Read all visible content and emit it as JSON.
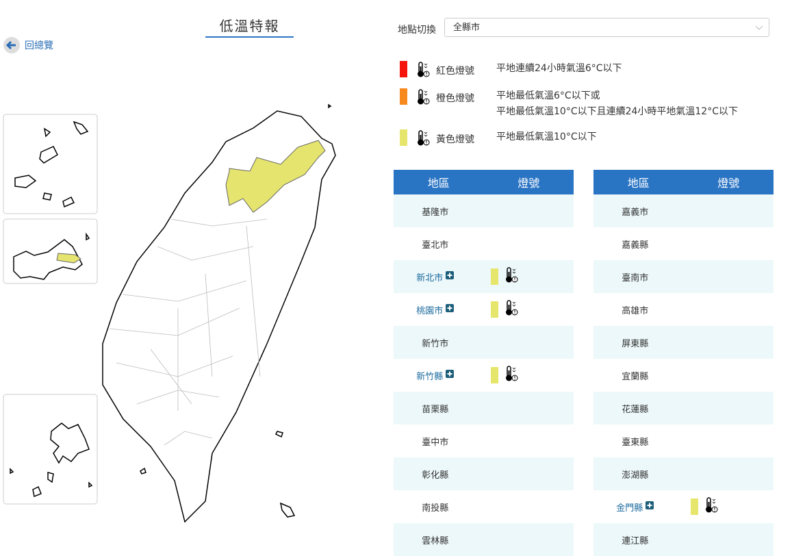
{
  "header": {
    "title": "低溫特報",
    "back": "回總覽"
  },
  "location": {
    "label": "地點切換",
    "selected": "全縣市"
  },
  "legend": [
    {
      "name": "紅色燈號",
      "color": "#f5150d",
      "description": [
        "平地連續24小時氣溫6°C以下"
      ]
    },
    {
      "name": "橙色燈號",
      "color": "#f7891f",
      "description": [
        "平地最低氣溫6°C以下或",
        "平地最低氣溫10°C以下且連續24小時平地氣溫12°C以下"
      ]
    },
    {
      "name": "黃色燈號",
      "color": "#e6e66c",
      "description": [
        "平地最低氣溫10°C以下"
      ]
    }
  ],
  "tables": [
    {
      "headers": [
        "地區",
        "燈號"
      ],
      "rows": [
        {
          "region": "基隆市"
        },
        {
          "region": "臺北市"
        },
        {
          "region": "新北市",
          "color": "#e6e66c"
        },
        {
          "region": "桃園市",
          "color": "#e6e66c"
        },
        {
          "region": "新竹市"
        },
        {
          "region": "新竹縣",
          "color": "#e6e66c"
        },
        {
          "region": "苗栗縣"
        },
        {
          "region": "臺中市"
        },
        {
          "region": "彰化縣"
        },
        {
          "region": "南投縣"
        },
        {
          "region": "雲林縣"
        }
      ]
    },
    {
      "headers": [
        "地區",
        "燈號"
      ],
      "rows": [
        {
          "region": "嘉義市"
        },
        {
          "region": "嘉義縣"
        },
        {
          "region": "臺南市"
        },
        {
          "region": "高雄市"
        },
        {
          "region": "屏東縣"
        },
        {
          "region": "宜蘭縣"
        },
        {
          "region": "花蓮縣"
        },
        {
          "region": "臺東縣"
        },
        {
          "region": "澎湖縣"
        },
        {
          "region": "金門縣",
          "color": "#e6e66c"
        },
        {
          "region": "連江縣"
        }
      ]
    }
  ]
}
